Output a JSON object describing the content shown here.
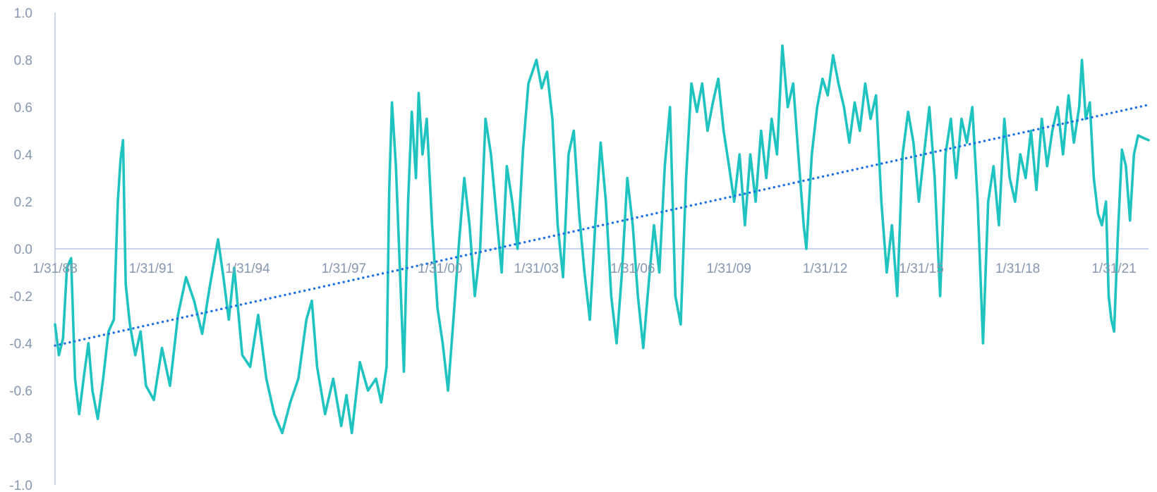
{
  "chart_data": {
    "type": "line",
    "title": "",
    "xlabel": "",
    "ylabel": "",
    "x_start": "1988-01-31",
    "x_end": "2022-02-28",
    "xlim": [
      "1988-01-31",
      "2022-02-28"
    ],
    "ylim": [
      -1.0,
      1.0
    ],
    "y_ticks": [
      "1.0",
      "0.8",
      "0.6",
      "0.4",
      "0.2",
      "0.0",
      "-0.2",
      "-0.4",
      "-0.6",
      "-0.8",
      "-1.0"
    ],
    "y_tick_values": [
      1.0,
      0.8,
      0.6,
      0.4,
      0.2,
      0.0,
      -0.2,
      -0.4,
      -0.6,
      -0.8,
      -1.0
    ],
    "x_ticks": [
      "1/31/88",
      "1/31/91",
      "1/31/94",
      "1/31/97",
      "1/31/00",
      "1/31/03",
      "1/31/06",
      "1/31/09",
      "1/31/12",
      "1/31/15",
      "1/31/18",
      "1/31/21"
    ],
    "x_tick_dates": [
      "1988-01-31",
      "1991-01-31",
      "1994-01-31",
      "1997-01-31",
      "2000-01-31",
      "2003-01-31",
      "2006-01-31",
      "2009-01-31",
      "2012-01-31",
      "2015-01-31",
      "2018-01-31",
      "2021-01-31"
    ],
    "grid": false,
    "legend": "none",
    "series": [
      {
        "color": "#1fc3bf",
        "points": [
          [
            "1988-01-31",
            -0.32
          ],
          [
            "1988-03-15",
            -0.45
          ],
          [
            "1988-05-01",
            -0.38
          ],
          [
            "1988-06-15",
            -0.08
          ],
          [
            "1988-08-01",
            -0.04
          ],
          [
            "1988-09-15",
            -0.55
          ],
          [
            "1988-11-01",
            -0.7
          ],
          [
            "1989-01-01",
            -0.52
          ],
          [
            "1989-02-15",
            -0.4
          ],
          [
            "1989-04-01",
            -0.6
          ],
          [
            "1989-06-01",
            -0.72
          ],
          [
            "1989-08-01",
            -0.55
          ],
          [
            "1989-10-01",
            -0.35
          ],
          [
            "1989-12-01",
            -0.3
          ],
          [
            "1990-01-15",
            0.2
          ],
          [
            "1990-02-15",
            0.38
          ],
          [
            "1990-03-15",
            0.46
          ],
          [
            "1990-04-15",
            -0.15
          ],
          [
            "1990-06-01",
            -0.32
          ],
          [
            "1990-08-01",
            -0.45
          ],
          [
            "1990-10-01",
            -0.35
          ],
          [
            "1990-12-01",
            -0.58
          ],
          [
            "1991-03-01",
            -0.64
          ],
          [
            "1991-06-01",
            -0.42
          ],
          [
            "1991-09-01",
            -0.58
          ],
          [
            "1991-12-01",
            -0.28
          ],
          [
            "1992-03-01",
            -0.12
          ],
          [
            "1992-06-01",
            -0.22
          ],
          [
            "1992-09-01",
            -0.36
          ],
          [
            "1992-12-01",
            -0.15
          ],
          [
            "1993-03-01",
            0.04
          ],
          [
            "1993-05-01",
            -0.12
          ],
          [
            "1993-07-01",
            -0.3
          ],
          [
            "1993-09-01",
            -0.08
          ],
          [
            "1993-12-01",
            -0.45
          ],
          [
            "1994-03-01",
            -0.5
          ],
          [
            "1994-06-01",
            -0.28
          ],
          [
            "1994-09-01",
            -0.55
          ],
          [
            "1994-12-01",
            -0.7
          ],
          [
            "1995-03-01",
            -0.78
          ],
          [
            "1995-06-01",
            -0.65
          ],
          [
            "1995-09-01",
            -0.55
          ],
          [
            "1995-12-01",
            -0.3
          ],
          [
            "1996-02-01",
            -0.22
          ],
          [
            "1996-04-01",
            -0.5
          ],
          [
            "1996-07-01",
            -0.7
          ],
          [
            "1996-10-01",
            -0.55
          ],
          [
            "1997-01-01",
            -0.75
          ],
          [
            "1997-03-01",
            -0.62
          ],
          [
            "1997-05-01",
            -0.78
          ],
          [
            "1997-08-01",
            -0.48
          ],
          [
            "1997-11-01",
            -0.6
          ],
          [
            "1998-02-01",
            -0.55
          ],
          [
            "1998-04-01",
            -0.65
          ],
          [
            "1998-06-01",
            -0.5
          ],
          [
            "1998-07-01",
            0.25
          ],
          [
            "1998-08-01",
            0.62
          ],
          [
            "1998-09-15",
            0.35
          ],
          [
            "1998-11-01",
            -0.1
          ],
          [
            "1998-12-15",
            -0.52
          ],
          [
            "1999-02-01",
            0.2
          ],
          [
            "1999-03-15",
            0.58
          ],
          [
            "1999-05-01",
            0.3
          ],
          [
            "1999-06-01",
            0.66
          ],
          [
            "1999-07-15",
            0.4
          ],
          [
            "1999-09-01",
            0.55
          ],
          [
            "1999-11-01",
            0.1
          ],
          [
            "2000-01-01",
            -0.25
          ],
          [
            "2000-03-01",
            -0.4
          ],
          [
            "2000-05-01",
            -0.6
          ],
          [
            "2000-07-01",
            -0.3
          ],
          [
            "2000-09-01",
            0.02
          ],
          [
            "2000-11-01",
            0.3
          ],
          [
            "2001-01-01",
            0.1
          ],
          [
            "2001-03-01",
            -0.2
          ],
          [
            "2001-05-01",
            0.0
          ],
          [
            "2001-07-01",
            0.55
          ],
          [
            "2001-09-01",
            0.4
          ],
          [
            "2001-11-01",
            0.15
          ],
          [
            "2002-01-01",
            -0.1
          ],
          [
            "2002-03-01",
            0.35
          ],
          [
            "2002-05-01",
            0.2
          ],
          [
            "2002-07-01",
            0.0
          ],
          [
            "2002-09-01",
            0.42
          ],
          [
            "2002-11-01",
            0.7
          ],
          [
            "2003-02-01",
            0.8
          ],
          [
            "2003-04-01",
            0.68
          ],
          [
            "2003-06-01",
            0.75
          ],
          [
            "2003-08-01",
            0.55
          ],
          [
            "2003-10-01",
            0.1
          ],
          [
            "2003-12-01",
            -0.12
          ],
          [
            "2004-02-01",
            0.4
          ],
          [
            "2004-04-01",
            0.5
          ],
          [
            "2004-06-01",
            0.15
          ],
          [
            "2004-08-01",
            -0.1
          ],
          [
            "2004-10-01",
            -0.3
          ],
          [
            "2004-12-01",
            0.1
          ],
          [
            "2005-02-01",
            0.45
          ],
          [
            "2005-04-01",
            0.2
          ],
          [
            "2005-06-01",
            -0.2
          ],
          [
            "2005-08-01",
            -0.4
          ],
          [
            "2005-10-01",
            -0.1
          ],
          [
            "2005-12-01",
            0.3
          ],
          [
            "2006-02-01",
            0.1
          ],
          [
            "2006-04-01",
            -0.2
          ],
          [
            "2006-06-01",
            -0.42
          ],
          [
            "2006-08-01",
            -0.15
          ],
          [
            "2006-10-01",
            0.1
          ],
          [
            "2006-12-01",
            -0.1
          ],
          [
            "2007-02-01",
            0.35
          ],
          [
            "2007-04-01",
            0.6
          ],
          [
            "2007-06-01",
            -0.2
          ],
          [
            "2007-08-01",
            -0.32
          ],
          [
            "2007-10-01",
            0.3
          ],
          [
            "2007-12-01",
            0.7
          ],
          [
            "2008-02-01",
            0.58
          ],
          [
            "2008-04-01",
            0.7
          ],
          [
            "2008-06-01",
            0.5
          ],
          [
            "2008-08-01",
            0.62
          ],
          [
            "2008-10-01",
            0.72
          ],
          [
            "2008-12-01",
            0.5
          ],
          [
            "2009-02-01",
            0.35
          ],
          [
            "2009-04-01",
            0.2
          ],
          [
            "2009-06-01",
            0.4
          ],
          [
            "2009-08-01",
            0.1
          ],
          [
            "2009-10-01",
            0.4
          ],
          [
            "2009-12-01",
            0.2
          ],
          [
            "2010-02-01",
            0.5
          ],
          [
            "2010-04-01",
            0.3
          ],
          [
            "2010-06-01",
            0.55
          ],
          [
            "2010-08-01",
            0.4
          ],
          [
            "2010-10-01",
            0.86
          ],
          [
            "2010-12-01",
            0.6
          ],
          [
            "2011-02-01",
            0.7
          ],
          [
            "2011-04-01",
            0.4
          ],
          [
            "2011-06-01",
            0.1
          ],
          [
            "2011-07-01",
            0.0
          ],
          [
            "2011-09-01",
            0.4
          ],
          [
            "2011-11-01",
            0.6
          ],
          [
            "2012-01-01",
            0.72
          ],
          [
            "2012-03-01",
            0.65
          ],
          [
            "2012-05-01",
            0.82
          ],
          [
            "2012-07-01",
            0.7
          ],
          [
            "2012-09-01",
            0.6
          ],
          [
            "2012-11-01",
            0.45
          ],
          [
            "2013-01-01",
            0.62
          ],
          [
            "2013-03-01",
            0.5
          ],
          [
            "2013-05-01",
            0.7
          ],
          [
            "2013-07-01",
            0.55
          ],
          [
            "2013-09-01",
            0.65
          ],
          [
            "2013-11-01",
            0.2
          ],
          [
            "2014-01-01",
            -0.1
          ],
          [
            "2014-03-01",
            0.1
          ],
          [
            "2014-05-01",
            -0.2
          ],
          [
            "2014-07-01",
            0.4
          ],
          [
            "2014-09-01",
            0.58
          ],
          [
            "2014-11-01",
            0.45
          ],
          [
            "2015-01-01",
            0.2
          ],
          [
            "2015-03-01",
            0.4
          ],
          [
            "2015-05-01",
            0.6
          ],
          [
            "2015-07-01",
            0.3
          ],
          [
            "2015-09-01",
            -0.2
          ],
          [
            "2015-11-01",
            0.4
          ],
          [
            "2016-01-01",
            0.55
          ],
          [
            "2016-03-01",
            0.3
          ],
          [
            "2016-05-01",
            0.55
          ],
          [
            "2016-07-01",
            0.45
          ],
          [
            "2016-09-01",
            0.6
          ],
          [
            "2016-11-01",
            0.2
          ],
          [
            "2017-01-01",
            -0.4
          ],
          [
            "2017-03-01",
            0.2
          ],
          [
            "2017-05-01",
            0.35
          ],
          [
            "2017-07-01",
            0.1
          ],
          [
            "2017-09-01",
            0.55
          ],
          [
            "2017-11-01",
            0.3
          ],
          [
            "2018-01-01",
            0.2
          ],
          [
            "2018-03-01",
            0.4
          ],
          [
            "2018-05-01",
            0.3
          ],
          [
            "2018-07-01",
            0.5
          ],
          [
            "2018-09-01",
            0.25
          ],
          [
            "2018-11-01",
            0.55
          ],
          [
            "2019-01-01",
            0.35
          ],
          [
            "2019-03-01",
            0.5
          ],
          [
            "2019-05-01",
            0.6
          ],
          [
            "2019-07-01",
            0.4
          ],
          [
            "2019-09-01",
            0.65
          ],
          [
            "2019-11-01",
            0.45
          ],
          [
            "2020-01-01",
            0.6
          ],
          [
            "2020-02-01",
            0.8
          ],
          [
            "2020-03-15",
            0.55
          ],
          [
            "2020-05-01",
            0.62
          ],
          [
            "2020-06-15",
            0.3
          ],
          [
            "2020-08-01",
            0.15
          ],
          [
            "2020-09-15",
            0.1
          ],
          [
            "2020-11-01",
            0.2
          ],
          [
            "2020-12-01",
            -0.2
          ],
          [
            "2021-01-01",
            -0.3
          ],
          [
            "2021-02-01",
            -0.35
          ],
          [
            "2021-03-15",
            0.05
          ],
          [
            "2021-05-01",
            0.42
          ],
          [
            "2021-06-15",
            0.35
          ],
          [
            "2021-08-01",
            0.12
          ],
          [
            "2021-09-15",
            0.4
          ],
          [
            "2021-11-01",
            0.48
          ],
          [
            "2022-02-28",
            0.46
          ]
        ]
      },
      {
        "color": "#1f6fe5",
        "style": "dotted",
        "points": [
          [
            "1988-01-31",
            -0.41
          ],
          [
            "2022-02-28",
            0.61
          ]
        ]
      }
    ]
  }
}
